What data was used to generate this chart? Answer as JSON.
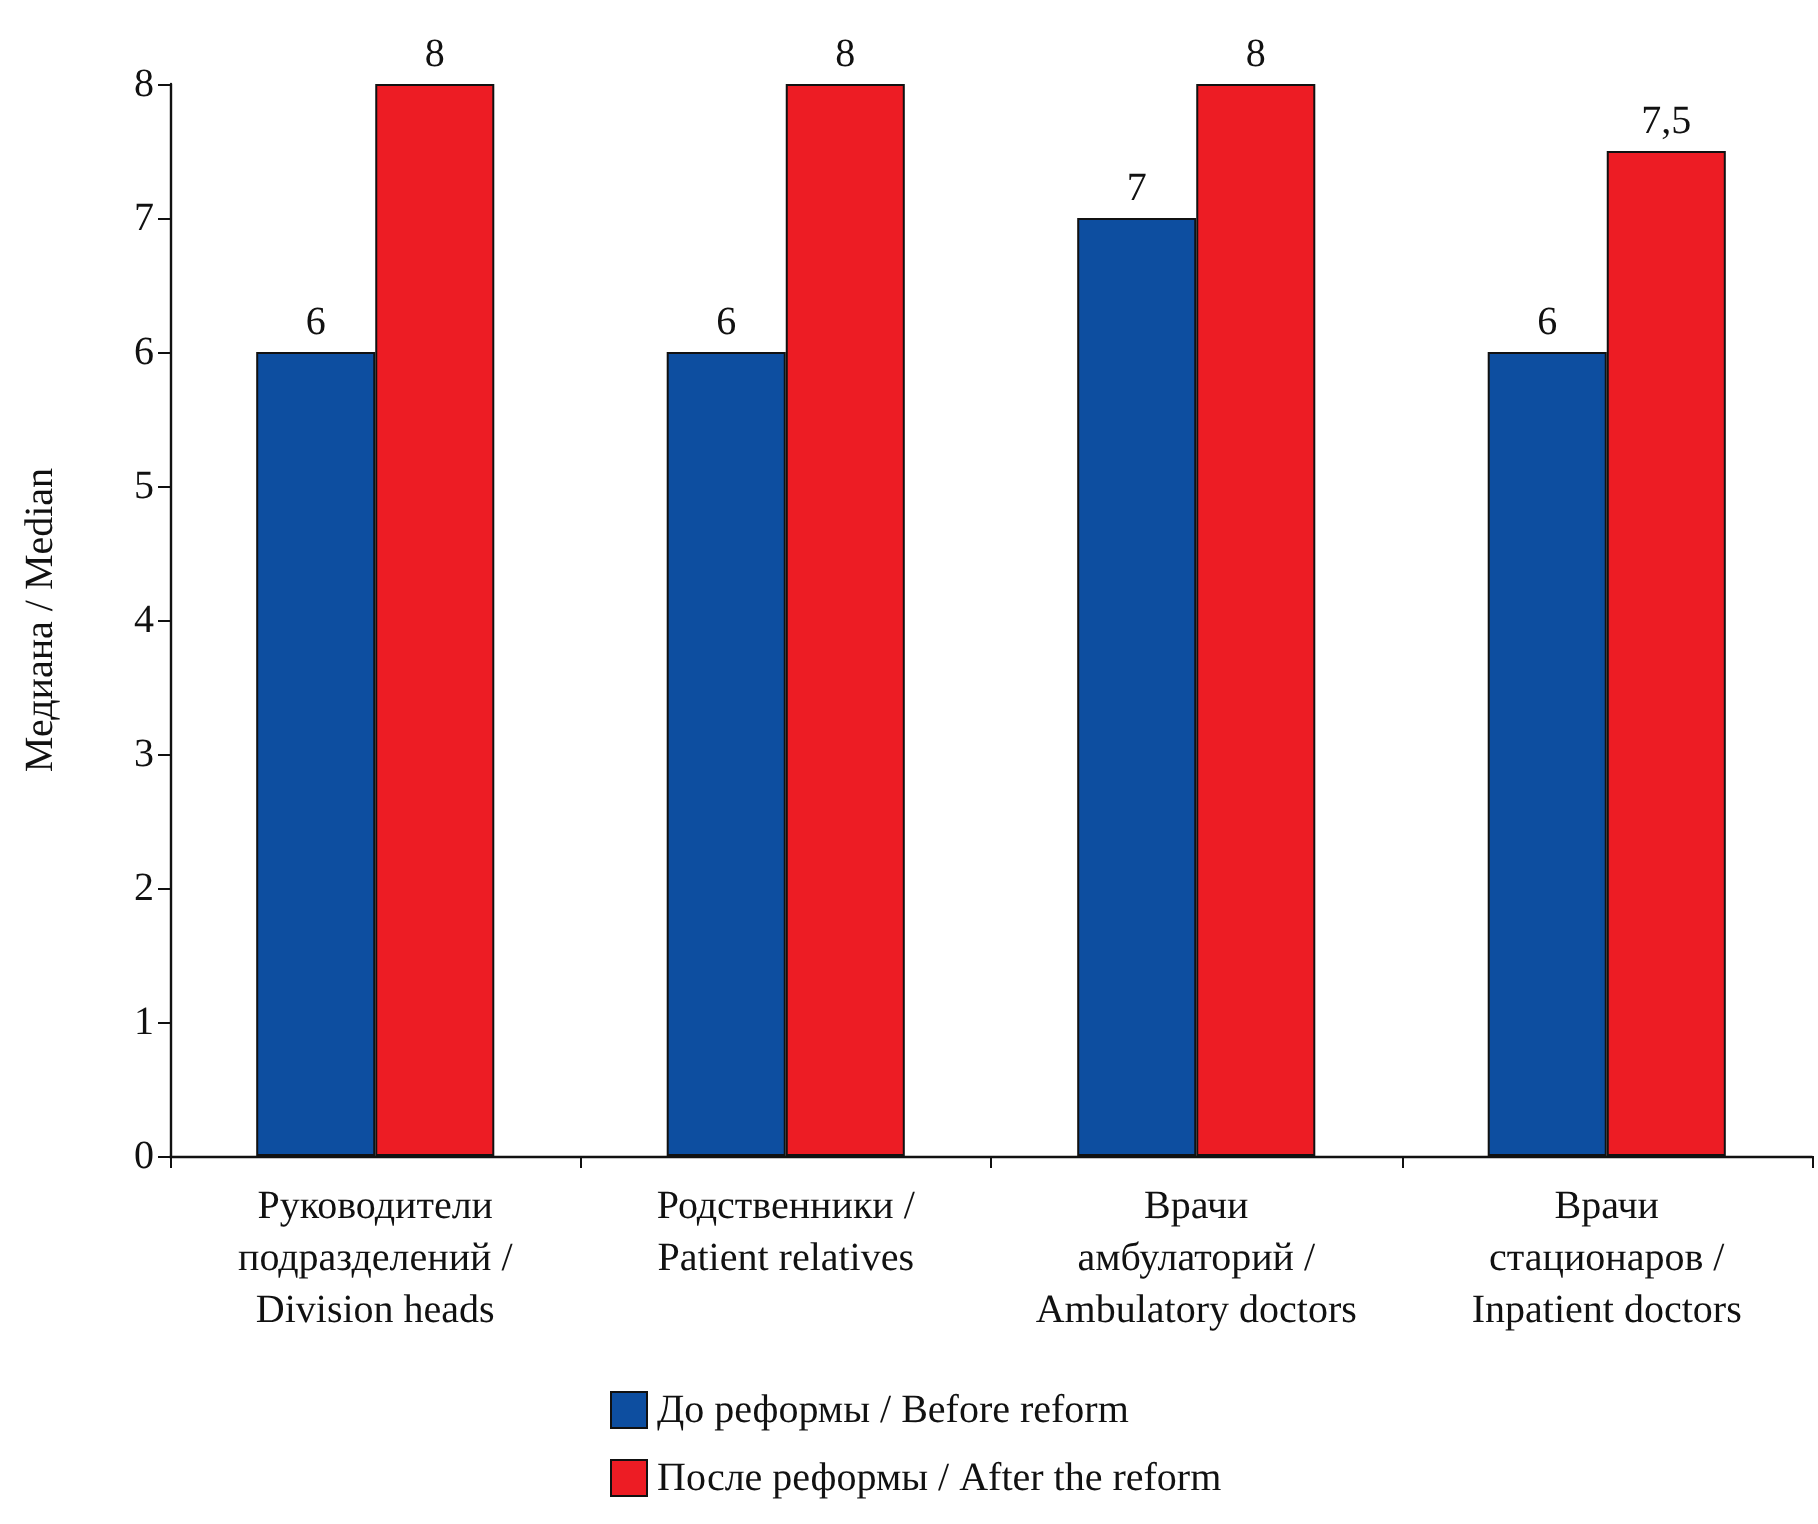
{
  "chart_data": {
    "type": "bar",
    "ylabel": "Медиана / Median",
    "categories": [
      "Руководители\nподразделений /\nDivision heads",
      "Родственники /\nPatient relatives",
      "Врачи\nамбулаторий /\nAmbulatory doctors",
      "Врачи\nстационаров /\nInpatient doctors"
    ],
    "series": [
      {
        "name": "До реформы / Before reform",
        "color": "#0d4ea0",
        "values": [
          6,
          6,
          7,
          6
        ],
        "value_labels": [
          "6",
          "6",
          "7",
          "6"
        ]
      },
      {
        "name": "После реформы / After the reform",
        "color": "#ed1c24",
        "values": [
          8,
          8,
          8,
          7.5
        ],
        "value_labels": [
          "8",
          "8",
          "8",
          "7,5"
        ]
      }
    ],
    "ylim": [
      0,
      8
    ],
    "yticks": [
      0,
      1,
      2,
      3,
      4,
      5,
      6,
      7,
      8
    ],
    "grid": false,
    "legend": "bottom"
  }
}
